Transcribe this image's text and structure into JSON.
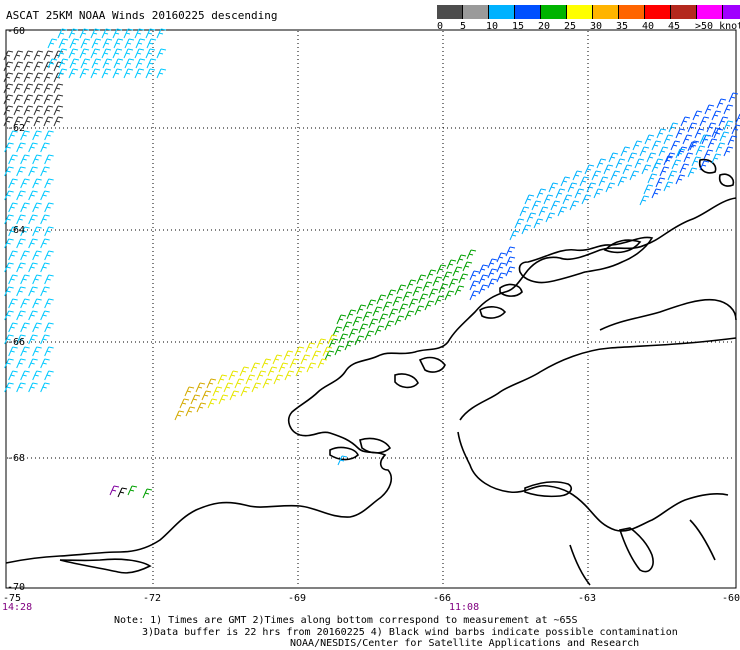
{
  "title": "ASCAT 25KM NOAA Winds 20160225 descending",
  "legend": {
    "colors": [
      "#4d4d4d",
      "#9a9a9a",
      "#00b2ff",
      "#0050ff",
      "#00b400",
      "#ffff00",
      "#ffb400",
      "#ff6400",
      "#ff0000",
      "#b4281e",
      "#ff00ff",
      "#a000ff",
      "#640096"
    ],
    "labels": [
      "0",
      "5",
      "10",
      "15",
      "20",
      "25",
      "30",
      "35",
      "40",
      "45",
      ">50 knots"
    ]
  },
  "map": {
    "lat_labels": [
      "-60",
      "-62",
      "-64",
      "-66",
      "-68",
      "-70"
    ],
    "lon_labels": [
      "-75",
      "-72",
      "-69",
      "-66",
      "-63",
      "-60"
    ],
    "time_left": "14:28",
    "time_mid": "11:08"
  },
  "notes": {
    "line1": "Note: 1) Times are GMT 2)Times along bottom correspond to measurement at ~65S",
    "line2": "3)Data buffer is 22 hrs from 20160225 4) Black wind barbs indicate possible contamination",
    "line3": "NOAA/NESDIS/Center for Satellite Applications and Research"
  }
}
